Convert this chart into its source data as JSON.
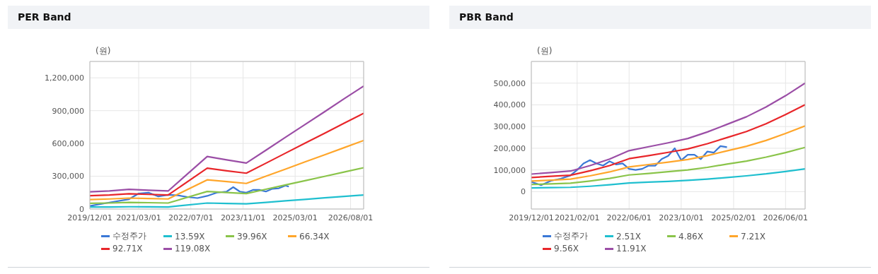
{
  "chart_data": [
    {
      "type": "line",
      "title": "PER Band",
      "ylabel": "(원)",
      "legend": "bottom",
      "grid": true,
      "marker": "none",
      "line_style": "solid",
      "x": [
        "2019-12",
        "2020-06",
        "2020-12",
        "2021-06",
        "2021-12",
        "2022-12",
        "2023-06",
        "2023-12",
        "2024-06",
        "2024-12",
        "2025-06",
        "2025-12",
        "2026-06",
        "2026-12"
      ],
      "xlim": [
        "2019-12-01",
        "2026-12-01"
      ],
      "xticks": [
        {
          "value": "2019-12-01",
          "label": "2019/12/01"
        },
        {
          "value": "2021-03-01",
          "label": "2021/03/01"
        },
        {
          "value": "2022-07-01",
          "label": "2022/07/01"
        },
        {
          "value": "2023-11-01",
          "label": "2023/11/01"
        },
        {
          "value": "2025-03-01",
          "label": "2025/03/01"
        },
        {
          "value": "2026-08-01",
          "label": "2026/08/01"
        }
      ],
      "ylim": [
        0,
        1350000
      ],
      "yticks": [
        {
          "value": 0,
          "label": "0"
        },
        {
          "value": 300000,
          "label": "300,000"
        },
        {
          "value": 600000,
          "label": "600,000"
        },
        {
          "value": 900000,
          "label": "900,000"
        },
        {
          "value": 1200000,
          "label": "1,200,000"
        }
      ],
      "series": [
        {
          "name": "수정주가",
          "color": "#3a78d6",
          "x": [
            "2019-12",
            "2020-06",
            "2020-12",
            "2021-03",
            "2021-06",
            "2021-09",
            "2021-12",
            "2022-03",
            "2022-06",
            "2022-09",
            "2022-12",
            "2023-03",
            "2023-06",
            "2023-08",
            "2023-10",
            "2023-12",
            "2024-02",
            "2024-04",
            "2024-06",
            "2024-08",
            "2024-10",
            "2024-12",
            "2025-01"
          ],
          "values": [
            28000,
            60000,
            90000,
            142000,
            150000,
            115000,
            130000,
            125000,
            110000,
            100000,
            120000,
            150000,
            160000,
            200000,
            160000,
            150000,
            175000,
            175000,
            160000,
            185000,
            190000,
            215000,
            205000
          ]
        },
        {
          "name": "13.59X",
          "color": "#1fbfcf",
          "values": [
            18000,
            19000,
            21000,
            20000,
            19000,
            55000,
            51000,
            48000,
            61000,
            75000,
            88000,
            102000,
            115000,
            128000
          ]
        },
        {
          "name": "39.96X",
          "color": "#8ac44a",
          "values": [
            53000,
            55000,
            60000,
            58000,
            55000,
            161000,
            151000,
            141000,
            181000,
            220000,
            259000,
            299000,
            338000,
            378000
          ]
        },
        {
          "name": "66.34X",
          "color": "#ffa62b",
          "values": [
            87000,
            92000,
            100000,
            96000,
            92000,
            267000,
            251000,
            234000,
            300000,
            365000,
            431000,
            496000,
            561000,
            627000
          ]
        },
        {
          "name": "92.71X",
          "color": "#e8262a",
          "values": [
            122000,
            128000,
            140000,
            134000,
            128000,
            374000,
            350000,
            328000,
            419000,
            511000,
            602000,
            693000,
            785000,
            876000
          ]
        },
        {
          "name": "119.08X",
          "color": "#9b4ea6",
          "values": [
            157000,
            165000,
            180000,
            172000,
            165000,
            480000,
            450000,
            421000,
            538000,
            656000,
            773000,
            890000,
            1008000,
            1125000
          ]
        }
      ]
    },
    {
      "type": "line",
      "title": "PBR Band",
      "ylabel": "(원)",
      "legend": "bottom",
      "grid": true,
      "marker": "none",
      "line_style": "solid",
      "x": [
        "2019-12",
        "2020-06",
        "2020-12",
        "2021-06",
        "2021-12",
        "2022-06",
        "2022-12",
        "2023-06",
        "2023-12",
        "2024-06",
        "2024-12",
        "2025-06",
        "2025-12",
        "2026-06",
        "2026-12"
      ],
      "xlim": [
        "2019-12-01",
        "2026-12-01"
      ],
      "xticks": [
        {
          "value": "2019-12-01",
          "label": "2019/12/01"
        },
        {
          "value": "2021-02-01",
          "label": "2021/02/01"
        },
        {
          "value": "2022-06-01",
          "label": "2022/06/01"
        },
        {
          "value": "2023-10-01",
          "label": "2023/10/01"
        },
        {
          "value": "2025-02-01",
          "label": "2025/02/01"
        },
        {
          "value": "2026-06-01",
          "label": "2026/06/01"
        }
      ],
      "ylim": [
        -80000,
        600000
      ],
      "yticks": [
        {
          "value": 0,
          "label": "0"
        },
        {
          "value": 100000,
          "label": "100,000"
        },
        {
          "value": 200000,
          "label": "200,000"
        },
        {
          "value": 300000,
          "label": "300,000"
        },
        {
          "value": 400000,
          "label": "400,000"
        },
        {
          "value": 500000,
          "label": "500,000"
        }
      ],
      "series": [
        {
          "name": "수정주가",
          "color": "#3a78d6",
          "x": [
            "2019-12",
            "2020-03",
            "2020-06",
            "2020-09",
            "2020-12",
            "2021-02",
            "2021-04",
            "2021-06",
            "2021-08",
            "2021-10",
            "2021-12",
            "2022-02",
            "2022-04",
            "2022-06",
            "2022-08",
            "2022-10",
            "2022-12",
            "2023-02",
            "2023-04",
            "2023-06",
            "2023-08",
            "2023-10",
            "2023-12",
            "2024-02",
            "2024-04",
            "2024-06",
            "2024-08",
            "2024-10",
            "2024-12"
          ],
          "values": [
            45000,
            30000,
            50000,
            60000,
            75000,
            100000,
            130000,
            145000,
            130000,
            120000,
            140000,
            125000,
            130000,
            105000,
            100000,
            105000,
            120000,
            120000,
            150000,
            165000,
            200000,
            145000,
            170000,
            170000,
            150000,
            185000,
            180000,
            210000,
            205000
          ]
        },
        {
          "name": "2.51X",
          "color": "#1fbfcf",
          "values": [
            17000,
            19000,
            20000,
            25000,
            32000,
            40000,
            44000,
            47000,
            52000,
            58000,
            65000,
            73000,
            82000,
            93000,
            105000
          ]
        },
        {
          "name": "4.86X",
          "color": "#8ac44a",
          "values": [
            33000,
            36000,
            39000,
            49000,
            61000,
            77000,
            84000,
            92000,
            100000,
            112000,
            127000,
            141000,
            159000,
            180000,
            204000
          ]
        },
        {
          "name": "7.21X",
          "color": "#ffa62b",
          "values": [
            49000,
            53000,
            58000,
            73000,
            91000,
            114000,
            125000,
            136000,
            148000,
            166000,
            188000,
            209000,
            236000,
            268000,
            303000
          ]
        },
        {
          "name": "9.56X",
          "color": "#e8262a",
          "values": [
            65000,
            71000,
            76000,
            96000,
            120000,
            152000,
            166000,
            181000,
            197000,
            221000,
            249000,
            277000,
            313000,
            355000,
            401000
          ]
        },
        {
          "name": "11.91X",
          "color": "#9b4ea6",
          "values": [
            81000,
            88000,
            95000,
            120000,
            150000,
            189000,
            207000,
            225000,
            245000,
            275000,
            310000,
            345000,
            390000,
            442000,
            500000
          ]
        }
      ]
    }
  ]
}
